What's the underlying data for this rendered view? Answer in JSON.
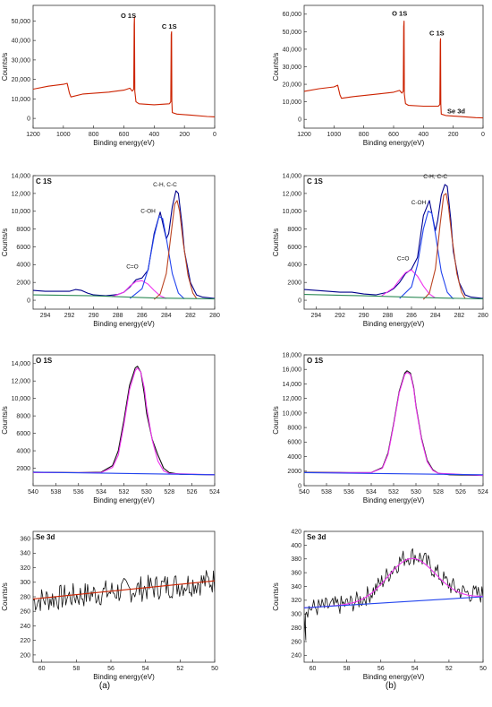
{
  "captions": {
    "left": "(a)",
    "right": "(b)"
  },
  "chart_data": [
    {
      "id": "survey-a",
      "type": "line",
      "title": "",
      "xlabel": "Binding energy(eV)",
      "ylabel": "Counts/s",
      "xlim": [
        1200,
        0
      ],
      "ylim": [
        -5000,
        58000
      ],
      "x_reversed": true,
      "xticks": [
        1200,
        1000,
        800,
        600,
        400,
        200,
        0
      ],
      "yticks": [
        0,
        10000,
        20000,
        30000,
        40000,
        50000
      ],
      "ytick_labels": [
        "0",
        "10,000",
        "20,000",
        "30,000",
        "40,000",
        "50,000"
      ],
      "annotations": [
        {
          "text": "O 1S",
          "x": 570,
          "y": 51500,
          "bold": true
        },
        {
          "text": "C 1S",
          "x": 300,
          "y": 46000,
          "bold": true
        }
      ],
      "series": [
        {
          "color": "#cc2200",
          "x": [
            1200,
            1100,
            1000,
            975,
            960,
            950,
            870,
            700,
            600,
            560,
            545,
            535,
            532,
            530,
            528,
            520,
            500,
            400,
            300,
            290,
            287,
            285,
            283,
            280,
            250,
            150,
            50,
            0
          ],
          "y": [
            15000,
            16500,
            17500,
            18000,
            13000,
            11000,
            12500,
            13500,
            14500,
            15500,
            14000,
            15000,
            48000,
            52000,
            14000,
            8500,
            7500,
            7000,
            7500,
            8500,
            43000,
            44500,
            9000,
            3000,
            2200,
            1600,
            1000,
            800
          ]
        }
      ]
    },
    {
      "id": "survey-b",
      "type": "line",
      "title": "",
      "xlabel": "Binding energy(eV)",
      "ylabel": "Counts/s",
      "xlim": [
        1200,
        0
      ],
      "ylim": [
        -5000,
        65000
      ],
      "x_reversed": true,
      "xticks": [
        1200,
        1000,
        800,
        600,
        400,
        200,
        0
      ],
      "yticks": [
        0,
        10000,
        20000,
        30000,
        40000,
        50000,
        60000
      ],
      "ytick_labels": [
        "0",
        "10,000",
        "20,000",
        "30,000",
        "40,000",
        "50,000",
        "60,000"
      ],
      "annotations": [
        {
          "text": "O 1S",
          "x": 560,
          "y": 59000,
          "bold": true
        },
        {
          "text": "C 1S",
          "x": 310,
          "y": 48000,
          "bold": true
        },
        {
          "text": "Se 3d",
          "x": 180,
          "y": 3500,
          "bold": true
        }
      ],
      "series": [
        {
          "color": "#cc2200",
          "x": [
            1200,
            1100,
            1000,
            975,
            960,
            950,
            870,
            700,
            600,
            560,
            545,
            535,
            532,
            530,
            528,
            520,
            500,
            400,
            300,
            290,
            287,
            285,
            283,
            280,
            250,
            150,
            50,
            0
          ],
          "y": [
            16000,
            17500,
            18500,
            19500,
            14000,
            12000,
            13000,
            14500,
            15500,
            16500,
            15000,
            16000,
            53000,
            56000,
            14500,
            9000,
            8000,
            7500,
            7500,
            8500,
            44000,
            46000,
            9000,
            3000,
            2200,
            1600,
            1000,
            800
          ]
        }
      ]
    },
    {
      "id": "c1s-a",
      "type": "line",
      "title": "C 1S",
      "xlabel": "Binding energy(eV)",
      "ylabel": "Counts/s",
      "xlim": [
        295,
        280
      ],
      "ylim": [
        -1000,
        14000
      ],
      "x_reversed": true,
      "xticks": [
        294,
        292,
        290,
        288,
        286,
        284,
        282,
        280
      ],
      "yticks": [
        0,
        2000,
        4000,
        6000,
        8000,
        10000,
        12000,
        14000
      ],
      "ytick_labels": [
        "0",
        "2000",
        "4000",
        "6000",
        "8000",
        "10,000",
        "12,000",
        "14,000"
      ],
      "annotations": [
        {
          "text": "C=O",
          "x": 286.8,
          "y": 3600,
          "bold": false
        },
        {
          "text": "C-OH",
          "x": 285.5,
          "y": 9800,
          "bold": false
        },
        {
          "text": "C-H, C-C",
          "x": 284.1,
          "y": 12800,
          "bold": false
        }
      ],
      "series": [
        {
          "name": "",
          "color": "#00008b",
          "x": [
            295,
            294,
            293,
            292,
            291.5,
            291,
            290.5,
            290,
            289,
            288,
            287.5,
            287,
            286.5,
            286,
            285.5,
            285,
            284.5,
            284,
            283.8,
            283.5,
            283.2,
            283,
            282.7,
            282.5,
            282,
            281.5,
            281,
            280
          ],
          "y": [
            1100,
            1000,
            1000,
            1000,
            1200,
            1100,
            800,
            600,
            500,
            650,
            900,
            1500,
            2300,
            2500,
            3400,
            7500,
            9900,
            6900,
            7500,
            10500,
            12300,
            12000,
            8500,
            5500,
            2000,
            600,
            350,
            200
          ]
        },
        {
          "name": "",
          "color": "#ee33ee",
          "x": [
            288.5,
            287.5,
            287,
            286.5,
            286,
            285.5,
            285,
            284.5,
            284
          ],
          "y": [
            400,
            900,
            1600,
            2100,
            2200,
            1800,
            1100,
            500,
            200
          ]
        },
        {
          "name": "",
          "color": "#2244ee",
          "x": [
            287,
            286,
            285.5,
            285,
            284.6,
            284.3,
            284,
            283.5,
            283,
            282.5
          ],
          "y": [
            200,
            1300,
            3500,
            7200,
            9400,
            9200,
            7000,
            3000,
            800,
            150
          ]
        },
        {
          "name": "",
          "color": "#bb4422",
          "x": [
            285,
            284.5,
            284,
            283.6,
            283.3,
            283.1,
            282.9,
            282.6,
            282.2,
            281.8,
            281.5
          ],
          "y": [
            100,
            700,
            3000,
            7500,
            10800,
            11200,
            10000,
            6500,
            2800,
            800,
            200
          ]
        },
        {
          "name": "",
          "color": "#2e8b57",
          "x": [
            295,
            290,
            285,
            280
          ],
          "y": [
            600,
            500,
            250,
            150
          ]
        }
      ]
    },
    {
      "id": "c1s-b",
      "type": "line",
      "title": "C 1S",
      "xlabel": "Binding energy(eV)",
      "ylabel": "Counts/s",
      "xlim": [
        295,
        280
      ],
      "ylim": [
        -1000,
        14000
      ],
      "x_reversed": true,
      "xticks": [
        294,
        292,
        290,
        288,
        286,
        284,
        282,
        280
      ],
      "yticks": [
        0,
        2000,
        4000,
        6000,
        8000,
        10000,
        12000,
        14000
      ],
      "ytick_labels": [
        "0",
        "2000",
        "4000",
        "6000",
        "8000",
        "10,000",
        "12,000",
        "14,000"
      ],
      "annotations": [
        {
          "text": "C=O",
          "x": 286.7,
          "y": 4500,
          "bold": false
        },
        {
          "text": "C-OH",
          "x": 285.4,
          "y": 10800,
          "bold": false
        },
        {
          "text": "C-H, C-C",
          "x": 284,
          "y": 13700,
          "bold": false
        }
      ],
      "series": [
        {
          "name": "",
          "color": "#00008b",
          "x": [
            295,
            294,
            293,
            292,
            291,
            290,
            289,
            288,
            287.5,
            287,
            286.5,
            286,
            285.5,
            285,
            284.5,
            284,
            283.8,
            283.5,
            283.2,
            283,
            282.7,
            282.5,
            282,
            281.5,
            281,
            280
          ],
          "y": [
            1200,
            1100,
            1000,
            900,
            900,
            700,
            600,
            900,
            1300,
            2000,
            3000,
            3500,
            4800,
            9500,
            11200,
            7800,
            9000,
            11800,
            13000,
            12800,
            9000,
            5500,
            2000,
            600,
            350,
            200
          ]
        },
        {
          "name": "",
          "color": "#ee33ee",
          "x": [
            288.5,
            287.5,
            287,
            286.5,
            286,
            285.5,
            285,
            284.5,
            284
          ],
          "y": [
            500,
            1400,
            2300,
            3100,
            3400,
            2700,
            1600,
            700,
            250
          ]
        },
        {
          "name": "",
          "color": "#2244ee",
          "x": [
            287,
            286,
            285.5,
            285,
            284.6,
            284.3,
            284,
            283.5,
            283,
            282.5
          ],
          "y": [
            200,
            1500,
            4000,
            8000,
            10000,
            9800,
            7500,
            3200,
            900,
            150
          ]
        },
        {
          "name": "",
          "color": "#bb4422",
          "x": [
            285,
            284.5,
            284,
            283.6,
            283.3,
            283.1,
            282.9,
            282.6,
            282.2,
            281.8,
            281.5
          ],
          "y": [
            100,
            800,
            3500,
            8500,
            11800,
            12000,
            10600,
            7000,
            3000,
            900,
            200
          ]
        },
        {
          "name": "",
          "color": "#2e8b57",
          "x": [
            295,
            290,
            285,
            280
          ],
          "y": [
            650,
            500,
            300,
            150
          ]
        }
      ]
    },
    {
      "id": "o1s-a",
      "type": "line",
      "title": "O 1S",
      "xlabel": "Binding energy(eV)",
      "ylabel": "Counts/s",
      "xlim": [
        540,
        524
      ],
      "ylim": [
        0,
        15000
      ],
      "x_reversed": true,
      "xticks": [
        540,
        538,
        536,
        534,
        532,
        530,
        528,
        526,
        524
      ],
      "yticks": [
        2000,
        4000,
        6000,
        8000,
        10000,
        12000,
        14000
      ],
      "ytick_labels": [
        "2000",
        "4000",
        "6000",
        "8000",
        "10,000",
        "12,000",
        "14,000"
      ],
      "annotations": [],
      "series": [
        {
          "name": "",
          "color": "#111111",
          "x": [
            540,
            536,
            534,
            533,
            532.5,
            532,
            531.5,
            531,
            530.8,
            530.5,
            530.2,
            530,
            529.5,
            529,
            528.5,
            528,
            527,
            524
          ],
          "y": [
            1550,
            1500,
            1550,
            2300,
            4000,
            7500,
            11500,
            13500,
            13700,
            13000,
            10500,
            8300,
            5300,
            3500,
            2000,
            1500,
            1300,
            1250
          ]
        },
        {
          "name": "",
          "color": "#ee33ee",
          "x": [
            540,
            534,
            533,
            532.5,
            532,
            531.5,
            531,
            530.8,
            530.5,
            530.2,
            530,
            529.5,
            529,
            528.5,
            528,
            524
          ],
          "y": [
            1500,
            1500,
            2100,
            3500,
            7000,
            11000,
            13200,
            13500,
            13000,
            11200,
            9000,
            5200,
            2800,
            1700,
            1400,
            1250
          ]
        },
        {
          "name": "",
          "color": "#2244ee",
          "x": [
            540,
            524
          ],
          "y": [
            1550,
            1250
          ]
        }
      ]
    },
    {
      "id": "o1s-b",
      "type": "line",
      "title": "O 1S",
      "xlabel": "Binding energy(eV)",
      "ylabel": "Counts/s",
      "xlim": [
        540,
        524
      ],
      "ylim": [
        0,
        18000
      ],
      "x_reversed": true,
      "xticks": [
        540,
        538,
        536,
        534,
        532,
        530,
        528,
        526,
        524
      ],
      "yticks": [
        0,
        2000,
        4000,
        6000,
        8000,
        10000,
        12000,
        14000,
        16000,
        18000
      ],
      "ytick_labels": [
        "0",
        "2000",
        "4000",
        "6000",
        "8000",
        "10,000",
        "12,000",
        "14,000",
        "16,000",
        "18,000"
      ],
      "annotations": [],
      "series": [
        {
          "name": "",
          "color": "#111111",
          "x": [
            540,
            536,
            534,
            533,
            532.5,
            532,
            531.5,
            531,
            530.8,
            530.5,
            530.2,
            530,
            529.5,
            529,
            528.5,
            528,
            527,
            524
          ],
          "y": [
            1850,
            1800,
            1800,
            2500,
            4500,
            8500,
            13000,
            15500,
            15800,
            15500,
            13500,
            11000,
            6500,
            3500,
            2200,
            1700,
            1500,
            1400
          ]
        },
        {
          "name": "",
          "color": "#ee33ee",
          "x": [
            540,
            534,
            533,
            532.5,
            532,
            531.5,
            531,
            530.8,
            530.5,
            530.2,
            530,
            529.5,
            529,
            528.5,
            528,
            524
          ],
          "y": [
            1800,
            1800,
            2400,
            4300,
            8300,
            12800,
            15300,
            15600,
            15300,
            13300,
            10800,
            6300,
            3300,
            2100,
            1700,
            1400
          ]
        },
        {
          "name": "",
          "color": "#2244ee",
          "x": [
            540,
            524
          ],
          "y": [
            1800,
            1500
          ]
        }
      ]
    },
    {
      "id": "se3d-a",
      "type": "line",
      "title": "Se 3d",
      "xlabel": "Binding energy(eV)",
      "ylabel": "Counts/s",
      "xlim": [
        60.5,
        50
      ],
      "ylim": [
        190,
        370
      ],
      "x_reversed": true,
      "xticks": [
        60,
        58,
        56,
        54,
        52,
        50
      ],
      "yticks": [
        200,
        220,
        240,
        260,
        280,
        300,
        320,
        340,
        360
      ],
      "ytick_labels": [
        "200",
        "220",
        "240",
        "260",
        "280",
        "300",
        "320",
        "340",
        "360"
      ],
      "annotations": [],
      "series": [
        {
          "name": "",
          "color": "#111111",
          "noise": true,
          "x": [
            60.5,
            50
          ],
          "y": [
            275,
            302
          ],
          "amplitude": 18
        },
        {
          "name": "",
          "color": "#cc2200",
          "x": [
            60.5,
            50
          ],
          "y": [
            277,
            302
          ]
        }
      ]
    },
    {
      "id": "se3d-b",
      "type": "line",
      "title": "Se 3d",
      "xlabel": "Binding energy(eV)",
      "ylabel": "Counts/s",
      "xlim": [
        60.5,
        50
      ],
      "ylim": [
        230,
        420
      ],
      "x_reversed": true,
      "xticks": [
        60,
        58,
        56,
        54,
        52,
        50
      ],
      "yticks": [
        240,
        260,
        280,
        300,
        320,
        340,
        360,
        380,
        400,
        420
      ],
      "ytick_labels": [
        "240",
        "260",
        "280",
        "300",
        "320",
        "340",
        "360",
        "380",
        "400",
        "420"
      ],
      "annotations": [],
      "series": [
        {
          "name": "",
          "color": "#111111",
          "noise": true,
          "peak": {
            "center": 54.2,
            "height": 65,
            "width": 1.4
          },
          "x": [
            60.5,
            50
          ],
          "y": [
            308,
            328
          ],
          "amplitude": 14,
          "dip": {
            "x": 60.4,
            "y": 262
          }
        },
        {
          "name": "",
          "color": "#ee33ee",
          "peak": {
            "center": 54.2,
            "height": 62,
            "width": 1.4
          },
          "x": [
            60.5,
            50
          ],
          "y": [
            309,
            325
          ]
        },
        {
          "name": "",
          "color": "#2244ee",
          "x": [
            60.5,
            50
          ],
          "y": [
            309,
            325
          ]
        }
      ]
    }
  ]
}
